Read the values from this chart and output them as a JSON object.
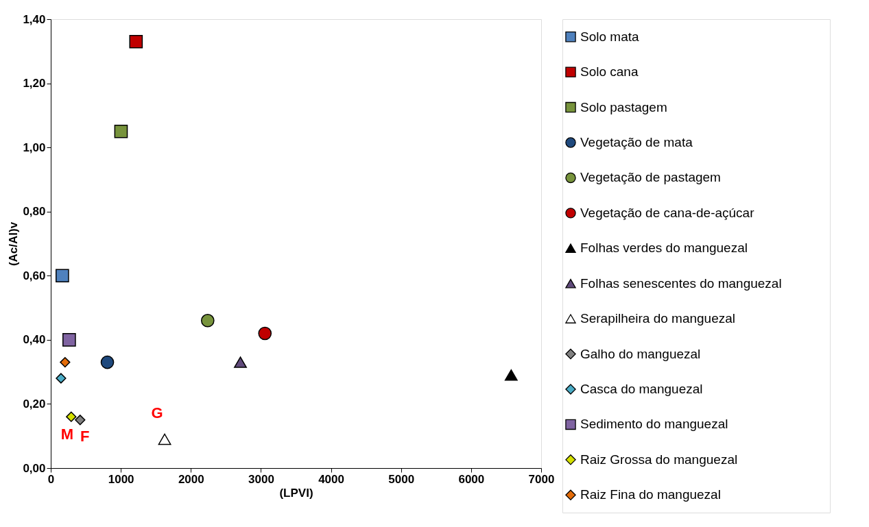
{
  "chart_data": {
    "type": "scatter",
    "xlabel": "(LPVI)",
    "ylabel": "(Ac/Al)v",
    "legend": "right",
    "grid": false,
    "xlim": [
      0,
      7000
    ],
    "xticks": [
      0,
      1000,
      2000,
      3000,
      4000,
      5000,
      6000,
      7000
    ],
    "ylim": [
      0,
      1.4
    ],
    "yticks": [
      {
        "value": 0,
        "label": "0,00"
      },
      {
        "value": 0.2,
        "label": "0,20"
      },
      {
        "value": 0.4,
        "label": "0,40"
      },
      {
        "value": 0.6,
        "label": "0,60"
      },
      {
        "value": 0.8,
        "label": "0,80"
      },
      {
        "value": 1.0,
        "label": "1,00"
      },
      {
        "value": 1.2,
        "label": "1,20"
      },
      {
        "value": 1.4,
        "label": "1,40"
      }
    ],
    "series": [
      {
        "name": "Solo mata",
        "color": "#4f81bd",
        "marker": "square",
        "x": [
          165
        ],
        "values": [
          0.6
        ]
      },
      {
        "name": "Solo cana",
        "color": "#c00000",
        "marker": "square",
        "x": [
          1217
        ],
        "values": [
          1.33
        ]
      },
      {
        "name": "Solo pastagem",
        "color": "#77933c",
        "marker": "square",
        "x": [
          1003
        ],
        "values": [
          1.05
        ]
      },
      {
        "name": "Vegetação de mata",
        "color": "#1f497d",
        "marker": "circle",
        "x": [
          808
        ],
        "values": [
          0.33
        ]
      },
      {
        "name": "Vegetação de pastagem",
        "color": "#77933c",
        "marker": "circle",
        "x": [
          2240
        ],
        "values": [
          0.46
        ]
      },
      {
        "name": "Vegetação de cana-de-açúcar",
        "color": "#c00000",
        "marker": "circle",
        "x": [
          3057
        ],
        "values": [
          0.42
        ]
      },
      {
        "name": "Folhas verdes do manguezal",
        "color": "#000000",
        "marker": "triangle",
        "x": [
          6572
        ],
        "values": [
          0.29
        ]
      },
      {
        "name": "Folhas senescentes do manguezal",
        "color": "#604a7b",
        "marker": "triangle",
        "x": [
          2707
        ],
        "values": [
          0.33
        ]
      },
      {
        "name": "Serapilheira do manguezal",
        "color": "#ffffff",
        "marker": "triangle",
        "x": [
          1626
        ],
        "values": [
          0.09
        ]
      },
      {
        "name": "Galho do manguezal",
        "color": "#808080",
        "marker": "diamond",
        "x": [
          419
        ],
        "values": [
          0.15
        ]
      },
      {
        "name": "Casca do manguezal",
        "color": "#4bacc6",
        "marker": "diamond",
        "x": [
          146
        ],
        "values": [
          0.28
        ]
      },
      {
        "name": "Sedimento do manguezal",
        "color": "#8064a2",
        "marker": "square",
        "x": [
          263
        ],
        "values": [
          0.4
        ]
      },
      {
        "name": "Raiz Grossa do manguezal",
        "color": "#d4e000",
        "marker": "diamond",
        "x": [
          292
        ],
        "values": [
          0.16
        ]
      },
      {
        "name": "Raiz Fina do manguezal",
        "color": "#e36c09",
        "marker": "diamond",
        "x": [
          204
        ],
        "values": [
          0.33
        ]
      }
    ],
    "annotations": [
      {
        "text": "G",
        "x": 1626,
        "y": 0.09
      },
      {
        "text": "M",
        "x": 292,
        "y": 0.16
      },
      {
        "text": "F",
        "x": 419,
        "y": 0.15
      }
    ]
  }
}
